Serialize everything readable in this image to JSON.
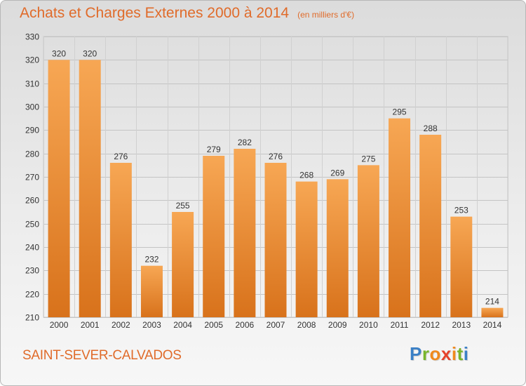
{
  "header": {
    "title": "Achats et Charges Externes 2000 à 2014",
    "unit": "(en milliers d'€)"
  },
  "footer": {
    "commune": "SAINT-SEVER-CALVADOS",
    "brand": "Proxiti"
  },
  "colors": {
    "accent": "#e06b2a",
    "bar_top": "#f7a754",
    "bar_bottom": "#d8721b"
  },
  "chart_data": {
    "type": "bar",
    "title": "Achats et Charges Externes 2000 à 2014",
    "subtitle": "(en milliers d'€)",
    "categories": [
      "2000",
      "2001",
      "2002",
      "2003",
      "2004",
      "2005",
      "2006",
      "2007",
      "2008",
      "2009",
      "2010",
      "2011",
      "2012",
      "2013",
      "2014"
    ],
    "values": [
      320,
      320,
      276,
      232,
      255,
      279,
      282,
      276,
      268,
      269,
      275,
      295,
      288,
      253,
      214
    ],
    "ylim": [
      210,
      330
    ],
    "yticks": [
      210,
      220,
      230,
      240,
      250,
      260,
      270,
      280,
      290,
      300,
      310,
      320,
      330
    ],
    "xlabel": "",
    "ylabel": "",
    "grid": true,
    "data_labels": true
  }
}
